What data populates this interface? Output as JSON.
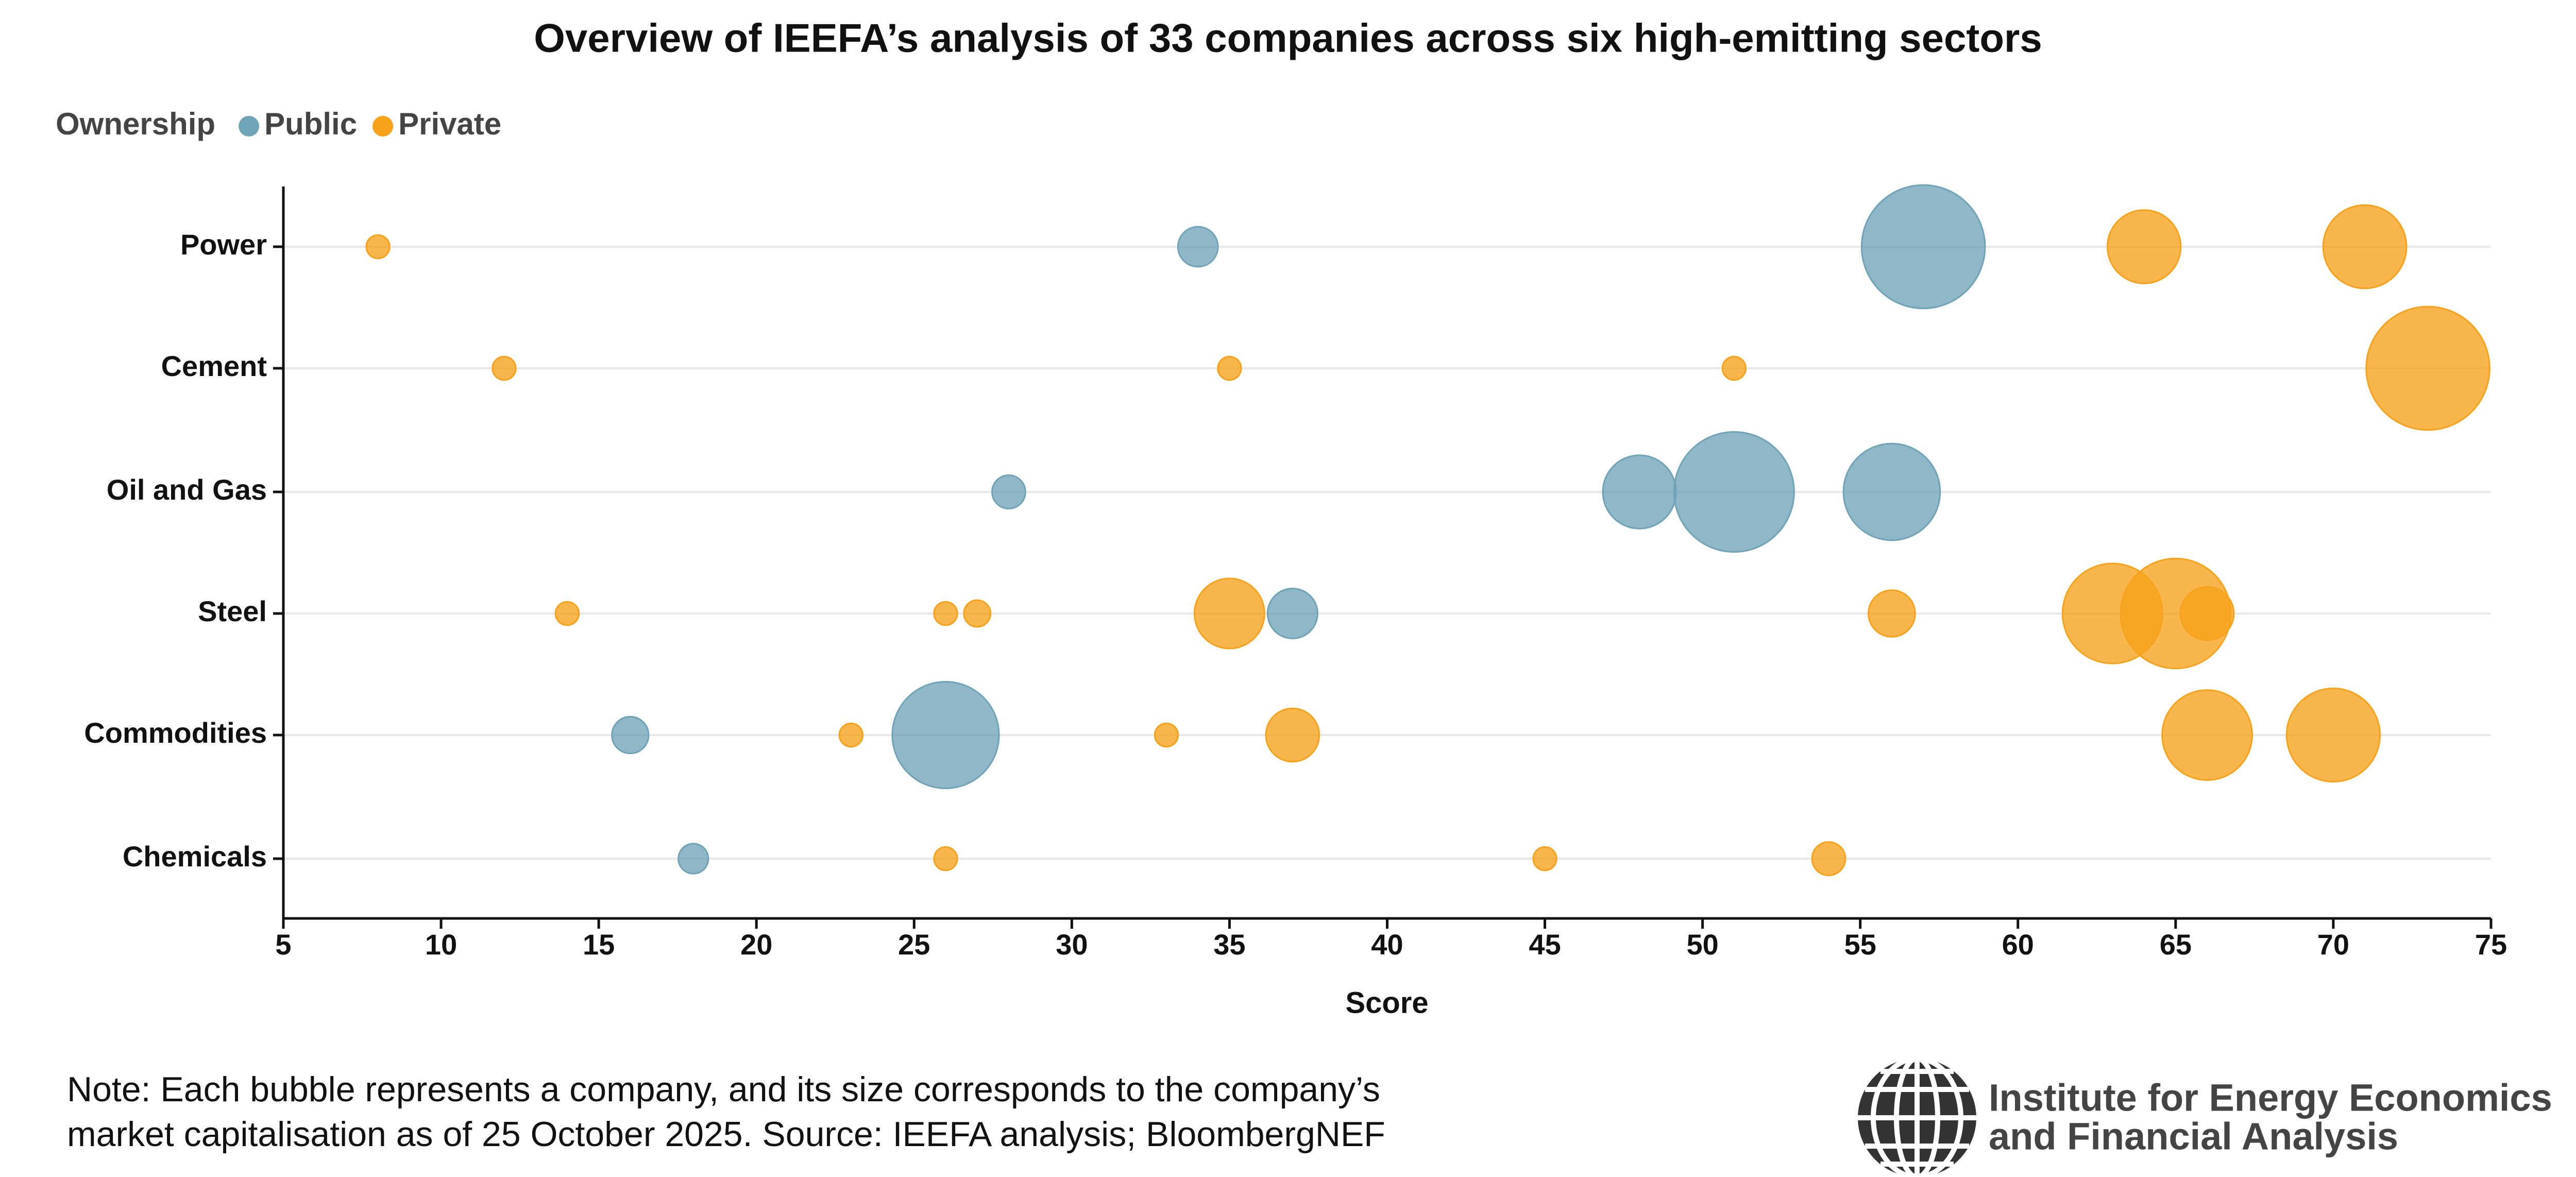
{
  "chart_data": {
    "type": "bubble",
    "title": "Overview of IEEFA’s analysis of 33 companies across six high-emitting sectors",
    "legend_title": "Ownership",
    "xlabel": "Score",
    "categories": [
      "Power",
      "Cement",
      "Oil and Gas",
      "Steel",
      "Commodities",
      "Chemicals"
    ],
    "xlim": [
      5,
      75
    ],
    "xticks": [
      5,
      10,
      15,
      20,
      25,
      30,
      35,
      40,
      45,
      50,
      55,
      60,
      65,
      70,
      75
    ],
    "grid": true,
    "series": [
      {
        "name": "Public",
        "color": "#6fa3b8",
        "y": [
          "Power",
          "Power",
          "Oil and Gas",
          "Oil and Gas",
          "Oil and Gas",
          "Oil and Gas",
          "Steel",
          "Commodities",
          "Commodities",
          "Chemicals"
        ],
        "x": [
          34,
          57,
          28,
          48,
          51,
          56,
          37,
          16,
          26,
          18
        ],
        "sizes": [
          12,
          37,
          10,
          22,
          36,
          29,
          15,
          11,
          32,
          9
        ]
      },
      {
        "name": "Private",
        "color": "#f7a21b",
        "y": [
          "Power",
          "Power",
          "Power",
          "Cement",
          "Cement",
          "Cement",
          "Cement",
          "Steel",
          "Steel",
          "Steel",
          "Steel",
          "Steel",
          "Steel",
          "Steel",
          "Steel",
          "Commodities",
          "Commodities",
          "Commodities",
          "Commodities",
          "Commodities",
          "Chemicals",
          "Chemicals",
          "Chemicals"
        ],
        "x": [
          8,
          64,
          71,
          12,
          35,
          51,
          73,
          14,
          26,
          27,
          35,
          56,
          63,
          65,
          66,
          23,
          33,
          37,
          66,
          70,
          26,
          45,
          54
        ],
        "sizes": [
          7,
          22,
          25,
          7,
          7,
          7,
          37,
          7,
          7,
          8,
          21,
          14,
          30,
          33,
          16,
          7,
          7,
          16,
          27,
          28,
          7,
          7,
          10
        ]
      }
    ]
  },
  "note": [
    "Note: Each bubble represents a company, and its size corresponds to the company’s",
    "market capitalisation as of 25 October 2025. Source: IEEFA analysis; BloombergNEF"
  ],
  "logo": [
    "Institute for Energy Economics",
    "and Financial Analysis"
  ]
}
